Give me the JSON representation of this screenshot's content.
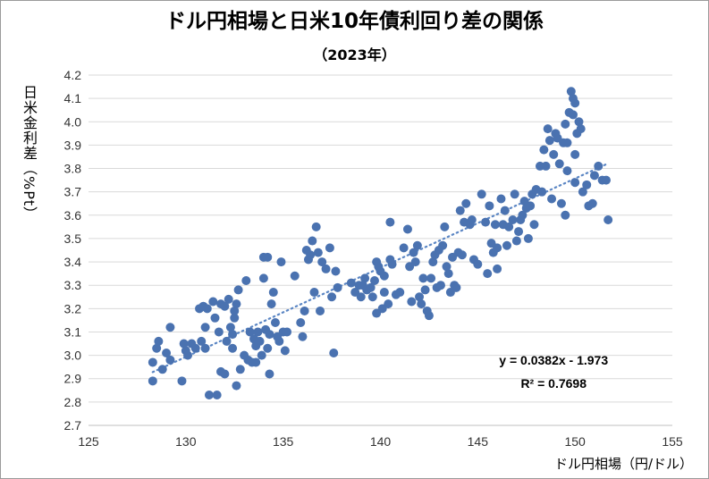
{
  "chart_data": {
    "type": "scatter",
    "title": "ドル円相場と日米10年債利回り差の関係",
    "subtitle": "（2023年）",
    "xlabel": "ドル円相場（円/ドル）",
    "ylabel": "日米金利差（%Pt）",
    "xlim": [
      125,
      155
    ],
    "ylim": [
      2.7,
      4.2
    ],
    "x_ticks": [
      "125",
      "130",
      "135",
      "140",
      "145",
      "150",
      "155"
    ],
    "y_ticks": [
      "2.7",
      "2.8",
      "2.9",
      "3.0",
      "3.1",
      "3.2",
      "3.3",
      "3.4",
      "3.5",
      "3.6",
      "3.7",
      "3.8",
      "3.9",
      "4.0",
      "4.1",
      "4.2"
    ],
    "grid": "horizontal",
    "marker_color": "#4a72b0",
    "trendline": {
      "slope": 0.0382,
      "intercept": -1.973,
      "style": "dotted",
      "color": "#5b86c4"
    },
    "equation_text": "y = 0.0382x - 1.973",
    "r2_text": "R² = 0.7698",
    "points": [
      [
        128.3,
        2.97
      ],
      [
        128.3,
        2.89
      ],
      [
        128.5,
        3.03
      ],
      [
        128.6,
        3.06
      ],
      [
        128.8,
        2.94
      ],
      [
        129.0,
        3.01
      ],
      [
        129.2,
        3.12
      ],
      [
        129.2,
        2.98
      ],
      [
        129.8,
        2.89
      ],
      [
        129.9,
        3.05
      ],
      [
        130.0,
        3.02
      ],
      [
        130.1,
        3.0
      ],
      [
        130.3,
        3.05
      ],
      [
        130.5,
        3.03
      ],
      [
        130.7,
        3.2
      ],
      [
        130.8,
        3.06
      ],
      [
        130.9,
        3.21
      ],
      [
        131.0,
        3.03
      ],
      [
        131.0,
        3.12
      ],
      [
        131.1,
        3.2
      ],
      [
        131.2,
        2.83
      ],
      [
        131.4,
        3.23
      ],
      [
        131.5,
        3.16
      ],
      [
        131.6,
        2.83
      ],
      [
        131.7,
        3.1
      ],
      [
        131.8,
        2.93
      ],
      [
        131.8,
        3.22
      ],
      [
        132.0,
        3.21
      ],
      [
        132.0,
        2.92
      ],
      [
        132.1,
        3.06
      ],
      [
        132.2,
        3.24
      ],
      [
        132.3,
        3.12
      ],
      [
        132.4,
        3.03
      ],
      [
        132.4,
        3.09
      ],
      [
        132.5,
        3.19
      ],
      [
        132.5,
        3.16
      ],
      [
        132.6,
        2.87
      ],
      [
        132.6,
        3.22
      ],
      [
        132.7,
        3.28
      ],
      [
        132.8,
        2.94
      ],
      [
        133.0,
        3.0
      ],
      [
        133.1,
        3.32
      ],
      [
        133.2,
        2.98
      ],
      [
        133.3,
        3.1
      ],
      [
        133.4,
        2.97
      ],
      [
        133.5,
        3.07
      ],
      [
        133.6,
        3.04
      ],
      [
        133.6,
        2.97
      ],
      [
        133.7,
        3.1
      ],
      [
        133.8,
        3.06
      ],
      [
        133.9,
        3.0
      ],
      [
        134.0,
        3.33
      ],
      [
        134.0,
        3.42
      ],
      [
        134.1,
        3.11
      ],
      [
        134.2,
        3.03
      ],
      [
        134.2,
        3.42
      ],
      [
        134.3,
        3.09
      ],
      [
        134.3,
        2.92
      ],
      [
        134.4,
        3.22
      ],
      [
        134.5,
        3.27
      ],
      [
        134.6,
        3.14
      ],
      [
        134.7,
        3.08
      ],
      [
        134.8,
        3.06
      ],
      [
        134.9,
        3.4
      ],
      [
        135.0,
        3.1
      ],
      [
        135.1,
        3.02
      ],
      [
        135.2,
        3.1
      ],
      [
        135.6,
        3.34
      ],
      [
        135.9,
        3.14
      ],
      [
        136.0,
        3.08
      ],
      [
        136.1,
        3.19
      ],
      [
        136.2,
        3.45
      ],
      [
        136.3,
        3.41
      ],
      [
        136.4,
        3.43
      ],
      [
        136.5,
        3.49
      ],
      [
        136.6,
        3.27
      ],
      [
        136.7,
        3.55
      ],
      [
        136.8,
        3.44
      ],
      [
        136.9,
        3.19
      ],
      [
        137.0,
        3.4
      ],
      [
        137.2,
        3.37
      ],
      [
        137.4,
        3.46
      ],
      [
        137.5,
        3.25
      ],
      [
        137.6,
        3.01
      ],
      [
        137.7,
        3.36
      ],
      [
        137.8,
        3.29
      ],
      [
        138.5,
        3.31
      ],
      [
        138.7,
        3.27
      ],
      [
        138.9,
        3.3
      ],
      [
        139.0,
        3.25
      ],
      [
        139.1,
        3.3
      ],
      [
        139.2,
        3.33
      ],
      [
        139.3,
        3.28
      ],
      [
        139.5,
        3.29
      ],
      [
        139.6,
        3.25
      ],
      [
        139.7,
        3.32
      ],
      [
        139.8,
        3.4
      ],
      [
        139.8,
        3.18
      ],
      [
        139.9,
        3.38
      ],
      [
        140.0,
        3.36
      ],
      [
        140.1,
        3.2
      ],
      [
        140.2,
        3.34
      ],
      [
        140.2,
        3.27
      ],
      [
        140.4,
        3.22
      ],
      [
        140.5,
        3.41
      ],
      [
        140.5,
        3.57
      ],
      [
        140.6,
        3.39
      ],
      [
        140.8,
        3.26
      ],
      [
        141.0,
        3.27
      ],
      [
        141.2,
        3.46
      ],
      [
        141.4,
        3.54
      ],
      [
        141.5,
        3.38
      ],
      [
        141.6,
        3.23
      ],
      [
        141.7,
        3.44
      ],
      [
        141.8,
        3.4
      ],
      [
        141.9,
        3.47
      ],
      [
        142.0,
        3.25
      ],
      [
        142.1,
        3.22
      ],
      [
        142.2,
        3.33
      ],
      [
        142.3,
        3.28
      ],
      [
        142.4,
        3.19
      ],
      [
        142.5,
        3.17
      ],
      [
        142.6,
        3.33
      ],
      [
        142.7,
        3.4
      ],
      [
        142.8,
        3.43
      ],
      [
        142.9,
        3.29
      ],
      [
        143.0,
        3.45
      ],
      [
        143.1,
        3.3
      ],
      [
        143.2,
        3.47
      ],
      [
        143.3,
        3.55
      ],
      [
        143.4,
        3.38
      ],
      [
        143.5,
        3.35
      ],
      [
        143.6,
        3.27
      ],
      [
        143.7,
        3.42
      ],
      [
        143.8,
        3.3
      ],
      [
        143.9,
        3.29
      ],
      [
        144.0,
        3.44
      ],
      [
        144.1,
        3.62
      ],
      [
        144.2,
        3.43
      ],
      [
        144.3,
        3.57
      ],
      [
        144.4,
        3.65
      ],
      [
        144.6,
        3.56
      ],
      [
        144.7,
        3.58
      ],
      [
        144.8,
        3.41
      ],
      [
        145.0,
        3.39
      ],
      [
        145.2,
        3.69
      ],
      [
        145.4,
        3.57
      ],
      [
        145.5,
        3.35
      ],
      [
        145.6,
        3.64
      ],
      [
        145.7,
        3.48
      ],
      [
        145.8,
        3.44
      ],
      [
        145.9,
        3.56
      ],
      [
        146.0,
        3.46
      ],
      [
        146.0,
        3.37
      ],
      [
        146.2,
        3.67
      ],
      [
        146.3,
        3.56
      ],
      [
        146.4,
        3.62
      ],
      [
        146.5,
        3.47
      ],
      [
        146.6,
        3.55
      ],
      [
        146.8,
        3.58
      ],
      [
        146.9,
        3.69
      ],
      [
        147.0,
        3.49
      ],
      [
        147.1,
        3.53
      ],
      [
        147.2,
        3.58
      ],
      [
        147.3,
        3.6
      ],
      [
        147.4,
        3.66
      ],
      [
        147.5,
        3.63
      ],
      [
        147.6,
        3.5
      ],
      [
        147.7,
        3.64
      ],
      [
        147.8,
        3.69
      ],
      [
        147.9,
        3.56
      ],
      [
        148.0,
        3.71
      ],
      [
        148.2,
        3.81
      ],
      [
        148.3,
        3.7
      ],
      [
        148.4,
        3.88
      ],
      [
        148.5,
        3.81
      ],
      [
        148.6,
        3.97
      ],
      [
        148.7,
        3.92
      ],
      [
        148.8,
        3.67
      ],
      [
        148.9,
        3.86
      ],
      [
        149.0,
        3.95
      ],
      [
        149.1,
        3.93
      ],
      [
        149.2,
        3.82
      ],
      [
        149.3,
        3.65
      ],
      [
        149.4,
        3.91
      ],
      [
        149.5,
        3.6
      ],
      [
        149.5,
        3.99
      ],
      [
        149.6,
        3.79
      ],
      [
        149.7,
        4.04
      ],
      [
        149.8,
        4.13
      ],
      [
        149.9,
        4.1
      ],
      [
        150.0,
        4.08
      ],
      [
        150.1,
        3.95
      ],
      [
        150.2,
        4.0
      ],
      [
        150.3,
        3.97
      ],
      [
        150.4,
        3.7
      ],
      [
        150.6,
        3.73
      ],
      [
        150.7,
        3.64
      ],
      [
        150.9,
        3.65
      ],
      [
        151.0,
        3.77
      ],
      [
        151.2,
        3.81
      ],
      [
        151.4,
        3.75
      ],
      [
        151.6,
        3.75
      ],
      [
        151.7,
        3.58
      ],
      [
        149.6,
        3.91
      ],
      [
        150.0,
        3.74
      ],
      [
        149.9,
        4.03
      ],
      [
        150.0,
        3.86
      ]
    ]
  }
}
